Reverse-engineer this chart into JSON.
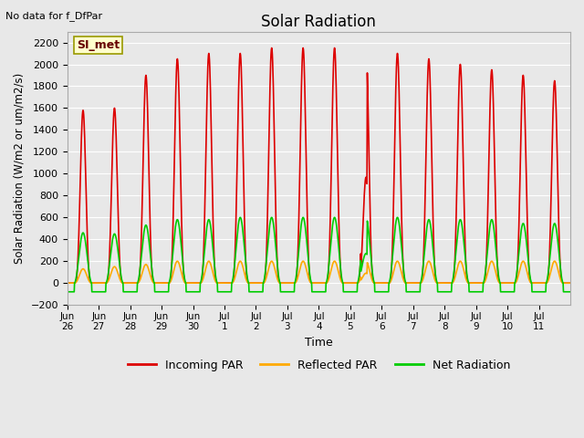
{
  "title": "Solar Radiation",
  "top_left_text": "No data for f_DfPar",
  "ylabel": "Solar Radiation (W/m2 or um/m2/s)",
  "xlabel": "Time",
  "ylim": [
    -200,
    2300
  ],
  "yticks": [
    -200,
    0,
    200,
    400,
    600,
    800,
    1000,
    1200,
    1400,
    1600,
    1800,
    2000,
    2200
  ],
  "xtick_labels": [
    "Jun\n26",
    "Jun\n27",
    "Jun\n28",
    "Jun\n29",
    "Jun\n30",
    "Jul\n1",
    "Jul\n2",
    "Jul\n3",
    "Jul\n4",
    "Jul\n5",
    "Jul\n6",
    "Jul\n7",
    "Jul\n8",
    "Jul\n9",
    "Jul\n10",
    "Jul\n11"
  ],
  "legend_labels": [
    "Incoming PAR",
    "Reflected PAR",
    "Net Radiation"
  ],
  "legend_colors": [
    "#dd0000",
    "#ffaa00",
    "#00cc00"
  ],
  "box_label": "SI_met",
  "box_color": "#ffffcc",
  "box_border": "#999900",
  "bg_color": "#e8e8e8",
  "plot_bg_color": "#e8e8e8",
  "grid_color": "#ffffff",
  "n_days": 16,
  "day_peaks_incoming": [
    1580,
    1600,
    1900,
    2050,
    2100,
    2100,
    2150,
    2150,
    2150,
    2150,
    2100,
    2050,
    2000,
    1950,
    1900,
    1850
  ],
  "day_peaks_net": [
    460,
    450,
    530,
    580,
    580,
    600,
    600,
    600,
    600,
    600,
    600,
    580,
    580,
    580,
    545,
    545
  ],
  "day_peaks_reflected": [
    130,
    150,
    170,
    200,
    200,
    200,
    200,
    200,
    200,
    200,
    200,
    200,
    200,
    200,
    200,
    200
  ],
  "night_min_net": -80,
  "line_width": 1.2
}
